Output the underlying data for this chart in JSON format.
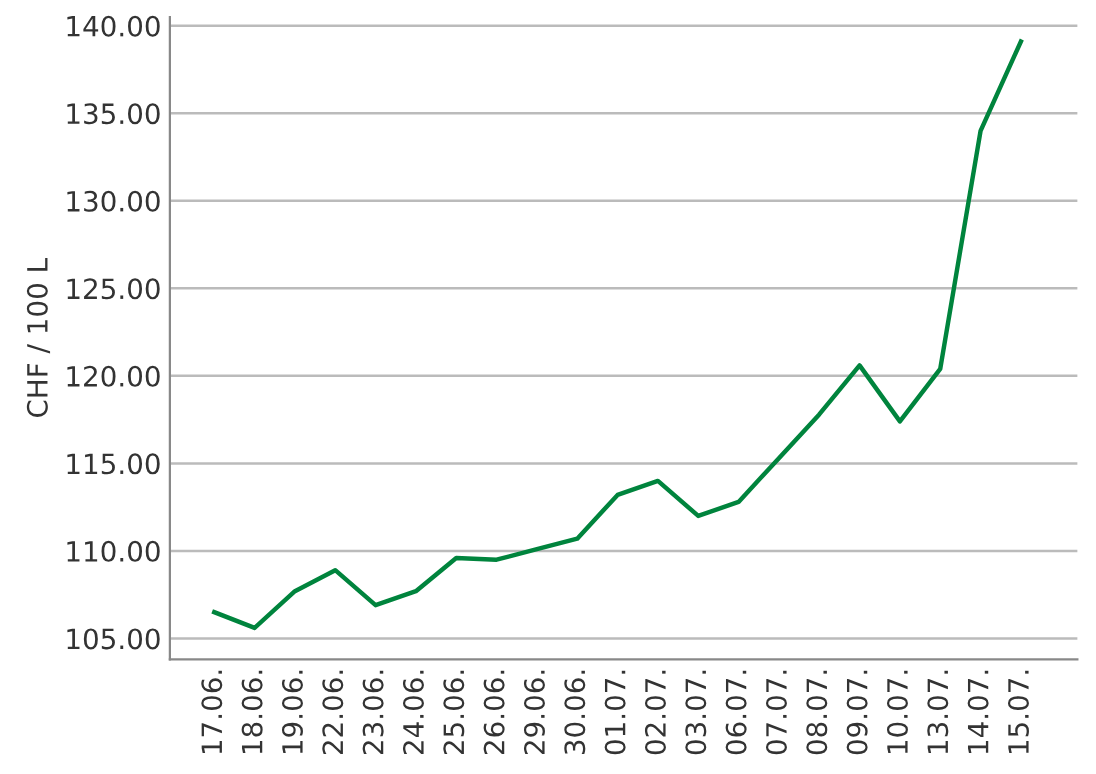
{
  "chart_data": {
    "type": "line",
    "ylabel": "CHF / 100 L",
    "categories": [
      "17.06.",
      "18.06.",
      "19.06.",
      "22.06.",
      "23.06.",
      "24.06.",
      "25.06.",
      "26.06.",
      "29.06.",
      "30.06.",
      "01.07.",
      "02.07.",
      "03.07.",
      "06.07.",
      "07.07.",
      "08.07.",
      "09.07.",
      "10.07.",
      "13.07.",
      "14.07.",
      "15.07."
    ],
    "series": [
      {
        "color": "#00843d",
        "values": [
          106.5,
          105.6,
          107.7,
          108.9,
          106.9,
          107.7,
          109.6,
          109.5,
          110.1,
          110.7,
          113.2,
          114.0,
          112.0,
          112.8,
          115.3,
          117.8,
          120.6,
          117.4,
          120.4,
          134.0,
          139.1
        ]
      }
    ],
    "ylim": [
      103.8,
      140.5
    ],
    "yticks": [
      {
        "value": 105,
        "label": "105.00"
      },
      {
        "value": 110,
        "label": "110.00"
      },
      {
        "value": 115,
        "label": "115.00"
      },
      {
        "value": 120,
        "label": "120.00"
      },
      {
        "value": 125,
        "label": "125.00"
      },
      {
        "value": 130,
        "label": "130.00"
      },
      {
        "value": 135,
        "label": "135.00"
      },
      {
        "value": 140,
        "label": "140.00"
      }
    ],
    "grid": "y",
    "marker": "none",
    "line_style": "solid",
    "legend": false
  }
}
